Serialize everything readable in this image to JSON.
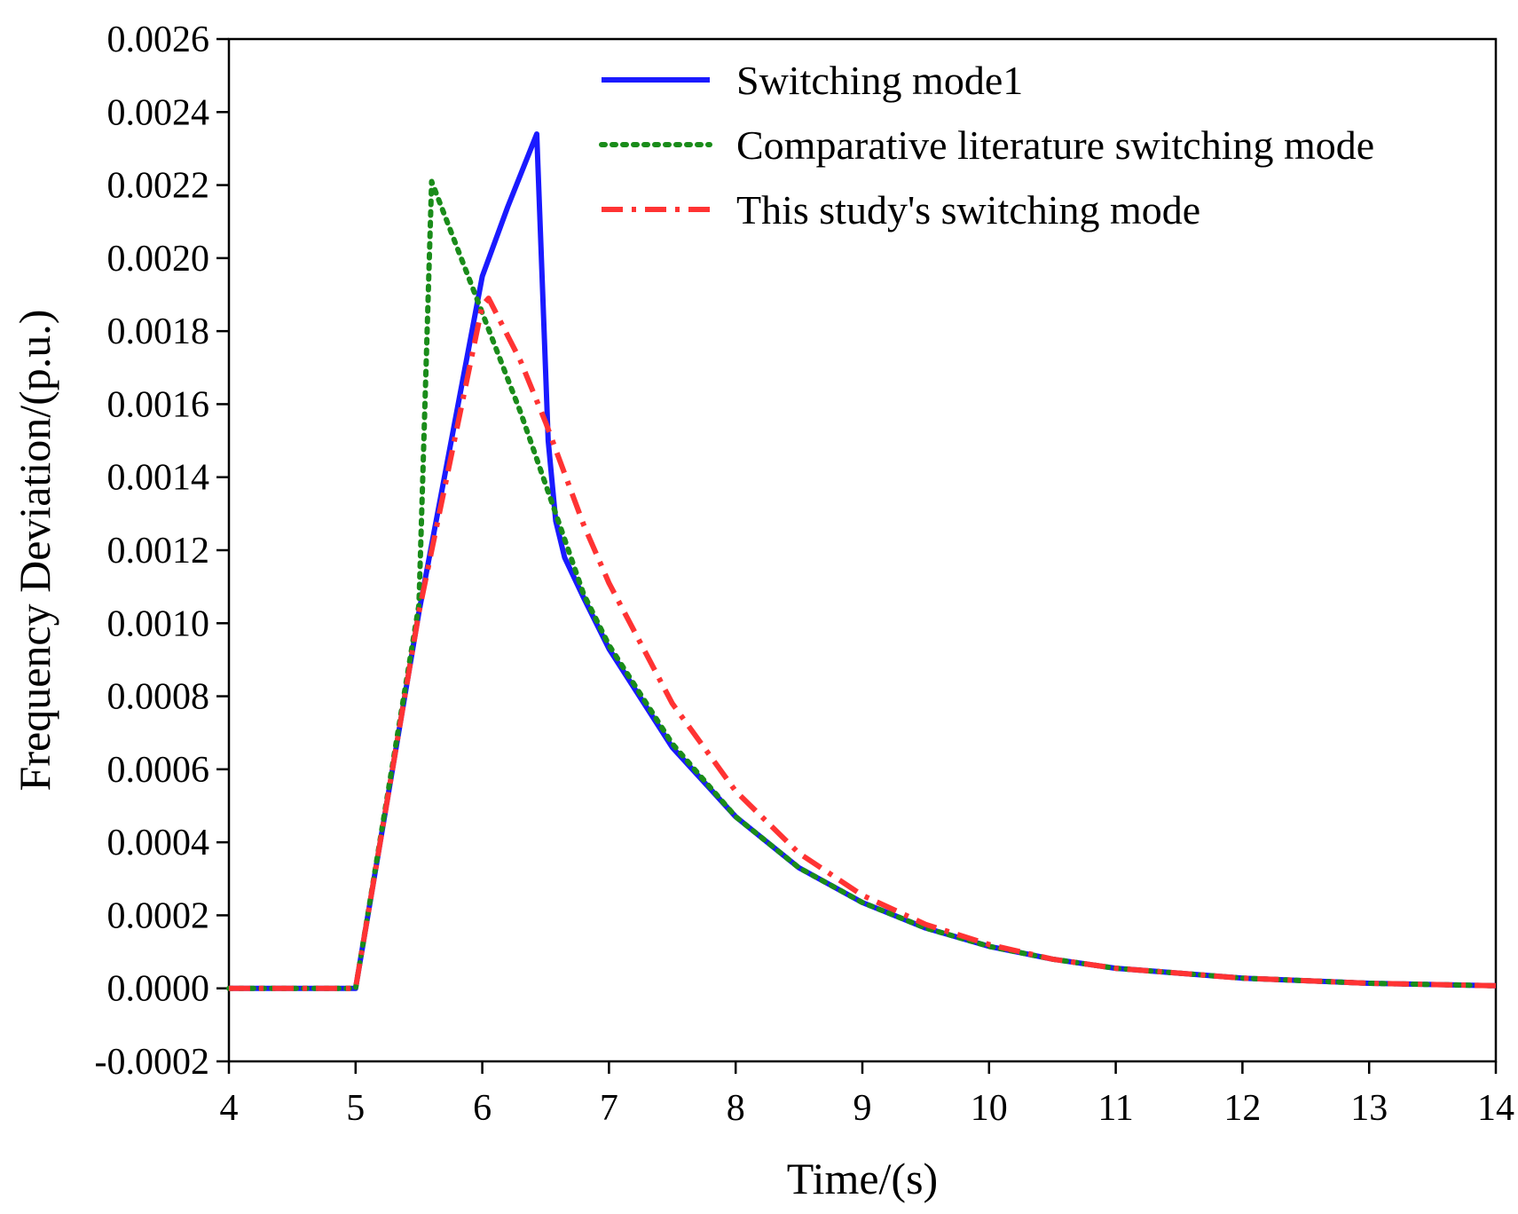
{
  "chart_data": {
    "type": "line",
    "title": "",
    "xlabel": "Time/(s)",
    "ylabel": "Frequency Deviation/(p.u.)",
    "xlim": [
      4,
      14
    ],
    "ylim": [
      -0.0002,
      0.0026
    ],
    "xticks": [
      4,
      5,
      6,
      7,
      8,
      9,
      10,
      11,
      12,
      13,
      14
    ],
    "xtick_labels": [
      "4",
      "5",
      "6",
      "7",
      "8",
      "9",
      "10",
      "11",
      "12",
      "13",
      "14"
    ],
    "yticks": [
      -0.0002,
      0,
      0.0002,
      0.0004,
      0.0006,
      0.0008,
      0.001,
      0.0012,
      0.0014,
      0.0016,
      0.0018,
      0.002,
      0.0022,
      0.0024,
      0.0026
    ],
    "ytick_labels": [
      "-0.0002",
      "0.0000",
      "0.0002",
      "0.0004",
      "0.0006",
      "0.0008",
      "0.0010",
      "0.0012",
      "0.0014",
      "0.0016",
      "0.0018",
      "0.0020",
      "0.0022",
      "0.0024",
      "0.0026"
    ],
    "grid": false,
    "legend_position": "top-right",
    "series": [
      {
        "name": "Switching mode1",
        "color": "#1a1aff",
        "style": "solid",
        "x": [
          4,
          5,
          5.5,
          6,
          6.2,
          6.43,
          6.52,
          6.58,
          6.65,
          6.8,
          7,
          7.5,
          8,
          8.5,
          9,
          9.5,
          10,
          10.5,
          11,
          12,
          13,
          14
        ],
        "y": [
          0,
          0,
          0.00103,
          0.00195,
          0.00214,
          0.00234,
          0.0015,
          0.00128,
          0.00118,
          0.00107,
          0.00093,
          0.00066,
          0.00047,
          0.00033,
          0.000235,
          0.000165,
          0.000115,
          8e-05,
          5.5e-05,
          2.8e-05,
          1.4e-05,
          7e-06
        ]
      },
      {
        "name": "Comparative literature switching mode",
        "color": "#1a8c1a",
        "style": "dotted",
        "x": [
          4,
          5,
          5.5,
          5.6,
          6,
          6.3,
          6.6,
          6.8,
          7,
          7.5,
          8,
          8.5,
          9,
          9.5,
          10,
          10.5,
          11,
          12,
          13,
          14
        ],
        "y": [
          0,
          0,
          0.00105,
          0.00221,
          0.00185,
          0.00158,
          0.00128,
          0.00108,
          0.00094,
          0.00067,
          0.00047,
          0.00033,
          0.000235,
          0.000165,
          0.000115,
          8e-05,
          5.5e-05,
          2.8e-05,
          1.4e-05,
          7e-06
        ]
      },
      {
        "name": "This study's switching mode",
        "color": "#ff3333",
        "style": "dashdot",
        "x": [
          4,
          5,
          5.5,
          6,
          6.05,
          6.3,
          6.5,
          6.8,
          7,
          7.5,
          8,
          8.5,
          9,
          9.5,
          10,
          10.5,
          11,
          12,
          13,
          14
        ],
        "y": [
          0,
          0,
          0.00103,
          0.00187,
          0.00189,
          0.00172,
          0.00155,
          0.00127,
          0.00111,
          0.00078,
          0.00054,
          0.00037,
          0.000255,
          0.000175,
          0.00012,
          8e-05,
          5.5e-05,
          2.8e-05,
          1.4e-05,
          7e-06
        ]
      }
    ]
  }
}
